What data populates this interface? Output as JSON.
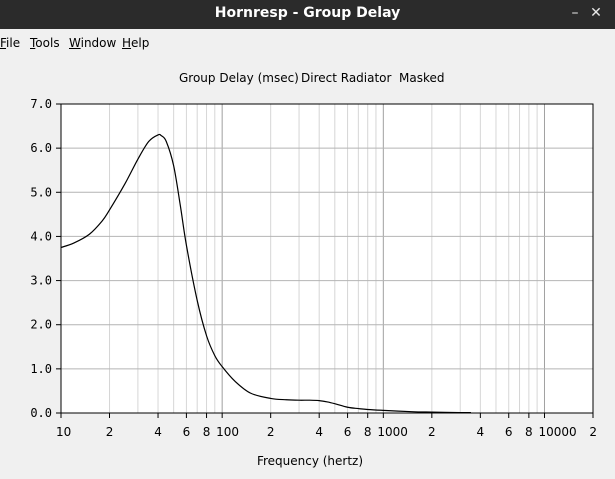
{
  "window": {
    "title": "Hornresp - Group Delay",
    "minimize_glyph": "–",
    "close_glyph": "✕"
  },
  "menu": {
    "items": [
      {
        "label": "File",
        "key": "F",
        "rest": "ile"
      },
      {
        "label": "Tools",
        "key": "T",
        "rest": "ools"
      },
      {
        "label": "Window",
        "key": "W",
        "rest": "indow"
      },
      {
        "label": "Help",
        "key": "H",
        "rest": "elp"
      }
    ]
  },
  "chart_data": {
    "type": "line",
    "title_parts": [
      "Group Delay (msec)",
      "Direct Radiator",
      "Masked"
    ],
    "xlabel": "Frequency (hertz)",
    "ylabel": "",
    "xscale": "log",
    "xlim": [
      10,
      20000
    ],
    "ylim": [
      0,
      7
    ],
    "yticks": [
      "0.0",
      "1.0",
      "2.0",
      "3.0",
      "4.0",
      "5.0",
      "6.0",
      "7.0"
    ],
    "xticks": [
      {
        "v": 10,
        "label": "10"
      },
      {
        "v": 20,
        "label": "2"
      },
      {
        "v": 40,
        "label": "4"
      },
      {
        "v": 60,
        "label": "6"
      },
      {
        "v": 80,
        "label": "8"
      },
      {
        "v": 100,
        "label": "100"
      },
      {
        "v": 200,
        "label": "2"
      },
      {
        "v": 400,
        "label": "4"
      },
      {
        "v": 600,
        "label": "6"
      },
      {
        "v": 800,
        "label": "8"
      },
      {
        "v": 1000,
        "label": "1000"
      },
      {
        "v": 2000,
        "label": "2"
      },
      {
        "v": 4000,
        "label": "4"
      },
      {
        "v": 6000,
        "label": "6"
      },
      {
        "v": 8000,
        "label": "8"
      },
      {
        "v": 10000,
        "label": "10000"
      },
      {
        "v": 20000,
        "label": "2"
      }
    ],
    "grid": true,
    "line_color": "#000000",
    "series": [
      {
        "x": [
          10,
          12,
          15,
          18,
          20,
          25,
          30,
          35,
          40,
          42,
          45,
          50,
          55,
          60,
          70,
          80,
          90,
          100,
          120,
          150,
          200,
          250,
          300,
          350,
          400,
          450,
          500,
          600,
          700,
          800,
          1000,
          1500,
          2000,
          3000,
          3500
        ],
        "values": [
          3.75,
          3.85,
          4.05,
          4.35,
          4.6,
          5.2,
          5.75,
          6.15,
          6.3,
          6.28,
          6.15,
          5.6,
          4.7,
          3.8,
          2.55,
          1.75,
          1.3,
          1.05,
          0.72,
          0.45,
          0.33,
          0.3,
          0.29,
          0.29,
          0.28,
          0.25,
          0.21,
          0.13,
          0.1,
          0.08,
          0.06,
          0.03,
          0.02,
          0.01,
          0.01
        ]
      }
    ]
  }
}
